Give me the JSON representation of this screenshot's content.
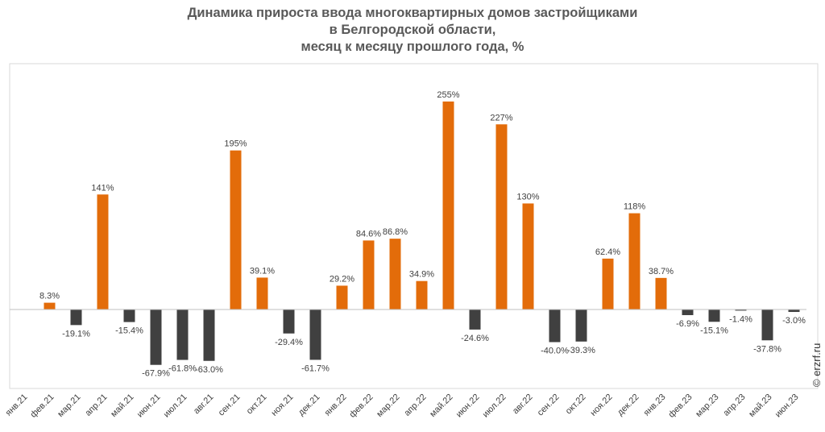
{
  "title_lines": [
    "Динамика прироста ввода многоквартирных домов застройщиками",
    "в Белгородской области,",
    "месяц к месяцу прошлого года, %"
  ],
  "copyright": "© erzrf.ru",
  "colors": {
    "positive": "#E36C0A",
    "negative": "#404040",
    "grid_border": "#D9D9D9",
    "axis": "#BFBFBF",
    "label": "#404040"
  },
  "chart_data": {
    "type": "bar",
    "categories": [
      "янв.21",
      "фев.21",
      "мар.21",
      "апр.21",
      "май.21",
      "июн.21",
      "июл.21",
      "авг.21",
      "сен.21",
      "окт.21",
      "ноя.21",
      "дек.21",
      "янв.22",
      "фев.22",
      "мар.22",
      "апр.22",
      "май.22",
      "июн.22",
      "июл.22",
      "авг.22",
      "сен.22",
      "окт.22",
      "ноя.22",
      "дек.22",
      "янв.23",
      "фев.23",
      "мар.23",
      "апр.23",
      "май.23",
      "июн.23"
    ],
    "values": [
      null,
      8.3,
      -19.1,
      141,
      -15.4,
      -67.9,
      -61.8,
      -63.0,
      195,
      39.1,
      -29.4,
      -61.7,
      29.2,
      84.6,
      86.8,
      34.9,
      255,
      -24.6,
      227,
      130,
      -40.0,
      -39.3,
      62.4,
      118,
      38.7,
      -6.9,
      -15.1,
      -1.4,
      -37.8,
      -3.0
    ],
    "labels": [
      "",
      "8.3%",
      "-19.1%",
      "141%",
      "-15.4%",
      "-67.9%",
      "-61.8%",
      "-63.0%",
      "195%",
      "39.1%",
      "-29.4%",
      "-61.7%",
      "29.2%",
      "84.6%",
      "86.8%",
      "34.9%",
      "255%",
      "-24.6%",
      "227%",
      "130%",
      "-40.0%",
      "-39.3%",
      "62.4%",
      "118%",
      "38.7%",
      "-6.9%",
      "-15.1%",
      "-1.4%",
      "-37.8%",
      "-3.0%"
    ],
    "ylim": [
      -100,
      300
    ],
    "grid": false,
    "legend": false
  }
}
